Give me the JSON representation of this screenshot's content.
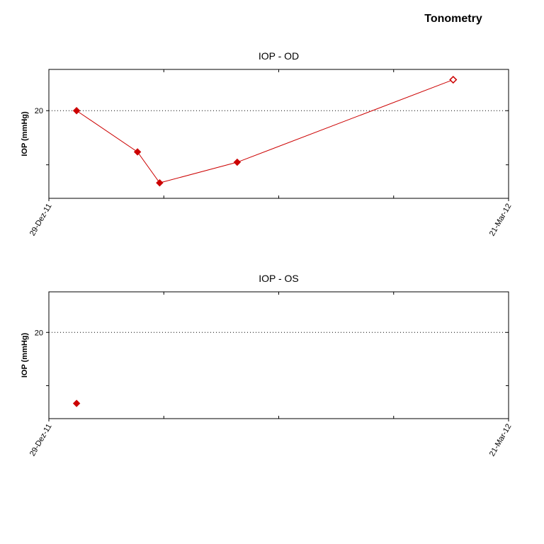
{
  "page_title": "Tonometry",
  "chart_data": [
    {
      "type": "line",
      "title": "IOP - OD",
      "xlabel": "",
      "ylabel": "IOP (mmHg)",
      "x_axis": {
        "type": "date",
        "range": [
          "2011-12-29",
          "2012-03-21"
        ],
        "tick_labels": [
          "29-Dez-11",
          "21-Mar-12"
        ]
      },
      "y_ticks": [
        20
      ],
      "grid": "dotted line at 20",
      "series": [
        {
          "color": "#cc0000",
          "points": [
            {
              "x": "2012-01-03",
              "y": 20.0,
              "marker": "filled"
            },
            {
              "x": "2012-01-14",
              "y": 16.0,
              "marker": "filled"
            },
            {
              "x": "2012-01-18",
              "y": 13.0,
              "marker": "filled"
            },
            {
              "x": "2012-02-01",
              "y": 15.0,
              "marker": "filled"
            },
            {
              "x": "2012-03-11",
              "y": 23.0,
              "marker": "open"
            }
          ]
        }
      ]
    },
    {
      "type": "scatter",
      "title": "IOP - OS",
      "xlabel": "",
      "ylabel": "IOP (mmHg)",
      "x_axis": {
        "type": "date",
        "range": [
          "2011-12-29",
          "2012-03-21"
        ],
        "tick_labels": [
          "29-Dez-11",
          "21-Mar-12"
        ]
      },
      "y_ticks": [
        20
      ],
      "grid": "dotted line at 20",
      "series": [
        {
          "color": "#cc0000",
          "points": [
            {
              "x": "2012-01-03",
              "y": 13.0,
              "marker": "filled"
            }
          ]
        }
      ]
    }
  ]
}
